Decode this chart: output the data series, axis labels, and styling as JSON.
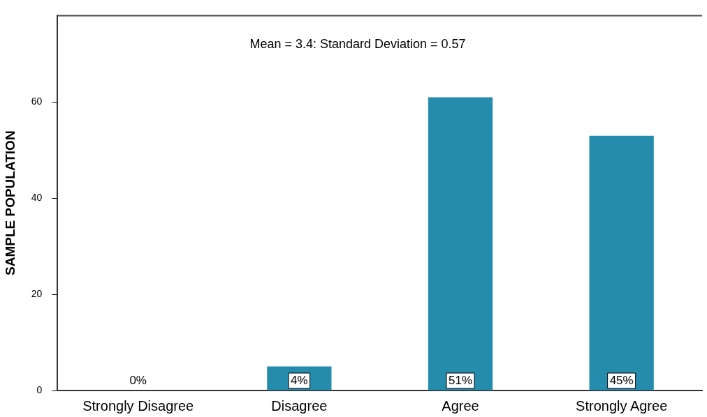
{
  "chart_data": {
    "type": "bar",
    "ylabel": "SAMPLE POPULATION",
    "categories": [
      "Strongly Disagree",
      "Disagree",
      "Agree",
      "Strongly Agree"
    ],
    "values": [
      0,
      5,
      61,
      53
    ],
    "color": "#258cad",
    "ylim": [
      0,
      78
    ],
    "yticks": [
      0,
      20,
      40,
      60
    ],
    "grid": false,
    "annotations": [
      "Mean = 3.4: Standard Deviation = 0.57",
      {
        "text": "0%",
        "x": "Strongly Disagree",
        "y": 0
      },
      {
        "text": "4%",
        "x": "Disagree",
        "y": 0
      },
      {
        "text": "51%",
        "x": "Agree",
        "y": 0
      },
      {
        "text": "45%",
        "x": "Strongly Agree",
        "y": 0
      }
    ]
  }
}
